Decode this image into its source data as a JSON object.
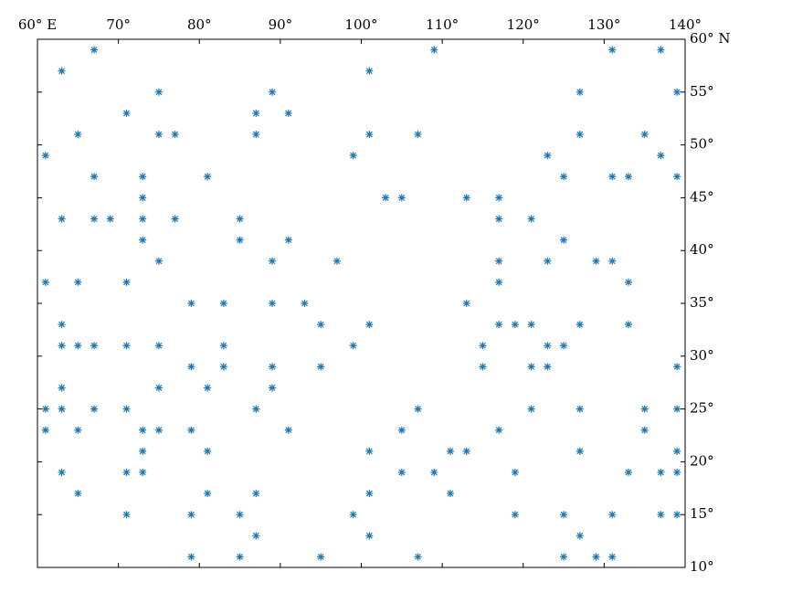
{
  "chart_data": {
    "type": "scatter",
    "color": "#1f77b4",
    "xlim": [
      60,
      140
    ],
    "ylim": [
      10,
      60
    ],
    "xticks": [
      {
        "value": 60,
        "label": "60° E"
      },
      {
        "value": 70,
        "label": "70°"
      },
      {
        "value": 80,
        "label": "80°"
      },
      {
        "value": 90,
        "label": "90°"
      },
      {
        "value": 100,
        "label": "100°"
      },
      {
        "value": 110,
        "label": "110°"
      },
      {
        "value": 120,
        "label": "120°"
      },
      {
        "value": 130,
        "label": "130°"
      },
      {
        "value": 140,
        "label": "140°"
      }
    ],
    "yticks": [
      {
        "value": 10,
        "label": "10°"
      },
      {
        "value": 15,
        "label": "15°"
      },
      {
        "value": 20,
        "label": "20°"
      },
      {
        "value": 25,
        "label": "25°"
      },
      {
        "value": 30,
        "label": "30°"
      },
      {
        "value": 35,
        "label": "35°"
      },
      {
        "value": 40,
        "label": "40°"
      },
      {
        "value": 45,
        "label": "45°"
      },
      {
        "value": 50,
        "label": "50°"
      },
      {
        "value": 55,
        "label": "55°"
      },
      {
        "value": 60,
        "label": "60° N"
      }
    ],
    "x": [
      67,
      109,
      131,
      137,
      63,
      101,
      75,
      89,
      127,
      139,
      71,
      87,
      91,
      65,
      75,
      77,
      87,
      101,
      107,
      127,
      135,
      61,
      99,
      123,
      137,
      67,
      73,
      81,
      125,
      131,
      133,
      139,
      73,
      103,
      105,
      113,
      117,
      63,
      67,
      69,
      73,
      77,
      85,
      117,
      121,
      73,
      85,
      91,
      125,
      75,
      89,
      97,
      117,
      123,
      129,
      131,
      61,
      65,
      71,
      117,
      133,
      79,
      83,
      89,
      93,
      113,
      63,
      95,
      101,
      117,
      119,
      121,
      127,
      133,
      63,
      65,
      67,
      71,
      75,
      83,
      99,
      115,
      123,
      125,
      79,
      83,
      89,
      95,
      115,
      121,
      123,
      139,
      63,
      75,
      81,
      89,
      61,
      63,
      67,
      71,
      87,
      107,
      121,
      127,
      135,
      139,
      61,
      65,
      73,
      75,
      79,
      91,
      105,
      117,
      135,
      73,
      81,
      101,
      111,
      113,
      127,
      139,
      63,
      71,
      73,
      105,
      109,
      119,
      133,
      137,
      139,
      65,
      81,
      87,
      101,
      111,
      71,
      79,
      85,
      99,
      119,
      125,
      131,
      137,
      139,
      87,
      101,
      127,
      79,
      85,
      95,
      107,
      125,
      129,
      131
    ],
    "y": [
      59,
      59,
      59,
      59,
      57,
      57,
      55,
      55,
      55,
      55,
      53,
      53,
      53,
      51,
      51,
      51,
      51,
      51,
      51,
      51,
      51,
      49,
      49,
      49,
      49,
      47,
      47,
      47,
      47,
      47,
      47,
      47,
      45,
      45,
      45,
      45,
      45,
      43,
      43,
      43,
      43,
      43,
      43,
      43,
      43,
      41,
      41,
      41,
      41,
      39,
      39,
      39,
      39,
      39,
      39,
      39,
      37,
      37,
      37,
      37,
      37,
      35,
      35,
      35,
      35,
      35,
      33,
      33,
      33,
      33,
      33,
      33,
      33,
      33,
      31,
      31,
      31,
      31,
      31,
      31,
      31,
      31,
      31,
      31,
      29,
      29,
      29,
      29,
      29,
      29,
      29,
      29,
      27,
      27,
      27,
      27,
      25,
      25,
      25,
      25,
      25,
      25,
      25,
      25,
      25,
      25,
      23,
      23,
      23,
      23,
      23,
      23,
      23,
      23,
      23,
      21,
      21,
      21,
      21,
      21,
      21,
      21,
      19,
      19,
      19,
      19,
      19,
      19,
      19,
      19,
      19,
      17,
      17,
      17,
      17,
      17,
      15,
      15,
      15,
      15,
      15,
      15,
      15,
      15,
      15,
      13,
      13,
      13,
      11,
      11,
      11,
      11,
      11,
      11,
      11
    ]
  }
}
